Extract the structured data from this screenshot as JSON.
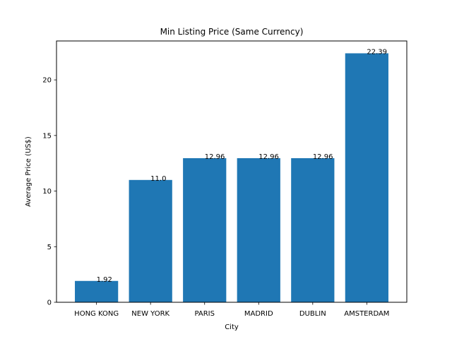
{
  "chart_data": {
    "type": "bar",
    "title": "Min Listing Price (Same Currency)",
    "xlabel": "City",
    "ylabel": "Average Price (US$)",
    "categories": [
      "HONG KONG",
      "NEW YORK",
      "PARIS",
      "MADRID",
      "DUBLIN",
      "AMSTERDAM"
    ],
    "values": [
      1.92,
      11.0,
      12.96,
      12.96,
      12.96,
      22.39
    ],
    "value_labels": [
      "1.92",
      "11.0",
      "12.96",
      "12.96",
      "12.96",
      "22.39"
    ],
    "ylim": [
      0,
      23.5
    ],
    "yticks": [
      0,
      5,
      10,
      15,
      20
    ],
    "ytick_labels": [
      "0",
      "5",
      "10",
      "15",
      "20"
    ],
    "grid": false,
    "legend": "none",
    "bar_color": "#1f77b4"
  }
}
